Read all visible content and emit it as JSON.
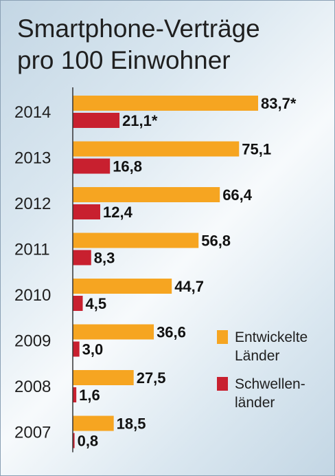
{
  "title_lines": [
    "Smartphone-Verträge",
    "pro 100 Einwohner"
  ],
  "colors": {
    "developed": "#f6a521",
    "emerging": "#c8202f",
    "axis": "#333333"
  },
  "chart_data": {
    "type": "bar",
    "orientation": "horizontal",
    "title": "Smartphone-Verträge pro 100 Einwohner",
    "categories": [
      "2014",
      "2013",
      "2012",
      "2011",
      "2010",
      "2009",
      "2008",
      "2007"
    ],
    "series": [
      {
        "name": "Entwickelte Länder",
        "values": [
          83.7,
          75.1,
          66.4,
          56.8,
          44.7,
          36.6,
          27.5,
          18.5
        ],
        "labels": [
          "83,7*",
          "75,1",
          "66,4",
          "56,8",
          "44,7",
          "36,6",
          "27,5",
          "18,5"
        ]
      },
      {
        "name": "Schwellen-länder",
        "values": [
          21.1,
          16.8,
          12.4,
          8.3,
          4.5,
          3.0,
          1.6,
          0.8
        ],
        "labels": [
          "21,1*",
          "16,8",
          "12,4",
          "8,3",
          "4,5",
          "3,0",
          "1,6",
          "0,8"
        ]
      }
    ],
    "xlim": [
      0,
      83.7
    ],
    "legend": "right"
  },
  "legend": [
    {
      "label": "Entwickelte\nLänder",
      "color": "#f6a521"
    },
    {
      "label": "Schwellen-\nländer",
      "color": "#c8202f"
    }
  ]
}
